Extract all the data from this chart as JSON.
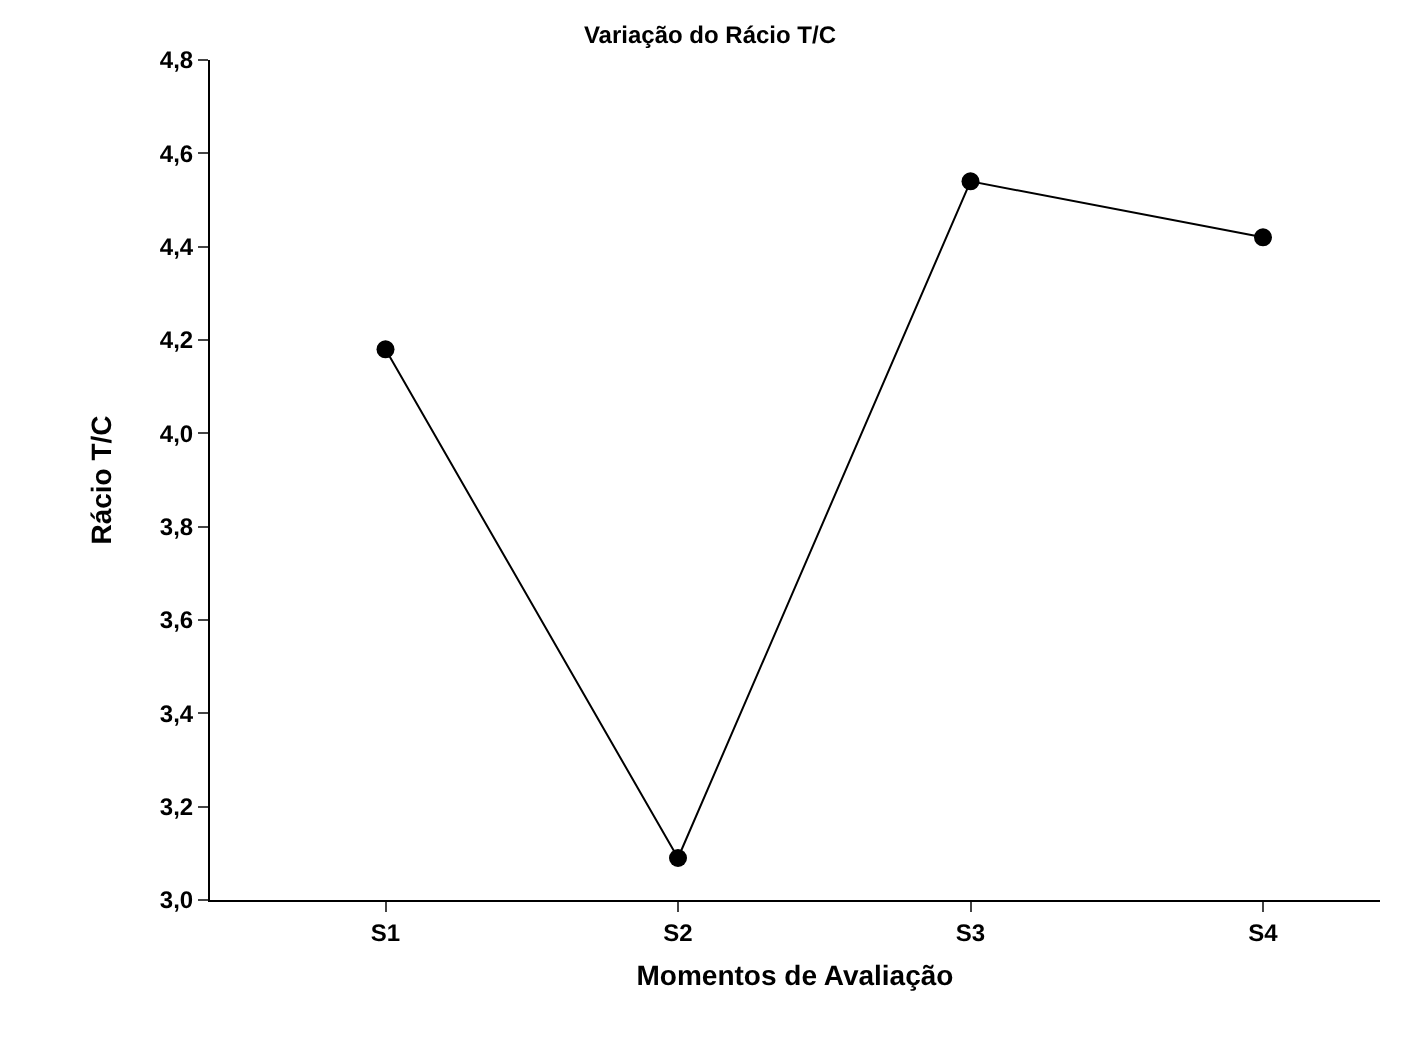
{
  "chart_data": {
    "type": "line",
    "title": "Variação do Rácio T/C",
    "xlabel": "Momentos de Avaliação",
    "ylabel": "Rácio T/C",
    "categories": [
      "S1",
      "S2",
      "S3",
      "S4"
    ],
    "series": [
      {
        "color": "#000000",
        "values": [
          4.18,
          3.09,
          4.54,
          4.42
        ]
      }
    ],
    "ylim": [
      3.0,
      4.8
    ],
    "yticks": [
      {
        "value": 3.0,
        "label": "3,0"
      },
      {
        "value": 3.2,
        "label": "3,2"
      },
      {
        "value": 3.4,
        "label": "3,4"
      },
      {
        "value": 3.6,
        "label": "3,6"
      },
      {
        "value": 3.8,
        "label": "3,8"
      },
      {
        "value": 4.0,
        "label": "4,0"
      },
      {
        "value": 4.2,
        "label": "4,2"
      },
      {
        "value": 4.4,
        "label": "4,4"
      },
      {
        "value": 4.6,
        "label": "4,6"
      },
      {
        "value": 4.8,
        "label": "4,8"
      }
    ],
    "legend": false,
    "marker": "circle",
    "line_style": "solid"
  }
}
